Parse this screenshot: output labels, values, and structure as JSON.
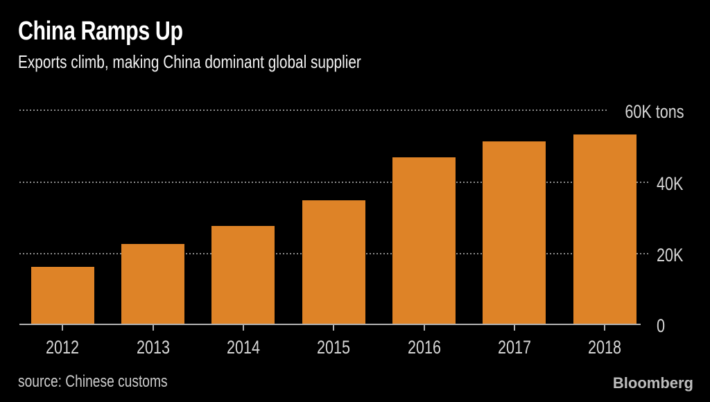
{
  "chart_data": {
    "type": "bar",
    "title": "China Ramps Up",
    "subtitle": "Exports climb, making China dominant global supplier",
    "categories": [
      "2012",
      "2013",
      "2014",
      "2015",
      "2016",
      "2017",
      "2018"
    ],
    "values": [
      16300,
      22500,
      27600,
      34800,
      46700,
      51200,
      53000
    ],
    "unit": "tons",
    "xlabel": "",
    "ylabel": "tons",
    "ylim": [
      0,
      60000
    ],
    "yticks": [
      {
        "value": 60000,
        "label": "60K tons"
      },
      {
        "value": 40000,
        "label": "40K"
      },
      {
        "value": 20000,
        "label": "20K"
      },
      {
        "value": 0,
        "label": "0"
      }
    ],
    "grid": "horizontal dotted gridlines",
    "legend": "none",
    "bar_color": "#de8327",
    "source": "source: Chinese customs",
    "brand": "Bloomberg"
  },
  "colors": {
    "background": "#000000",
    "bar": "#de8327",
    "title_text": "#ffffff",
    "subtitle_text": "#f2f2f2",
    "tick_text": "#d6d6d6",
    "gridline": "#8c8c8c",
    "axis_line": "#b3b3b3",
    "source_text": "#cccccc",
    "brand_text": "#bdbdbd"
  }
}
